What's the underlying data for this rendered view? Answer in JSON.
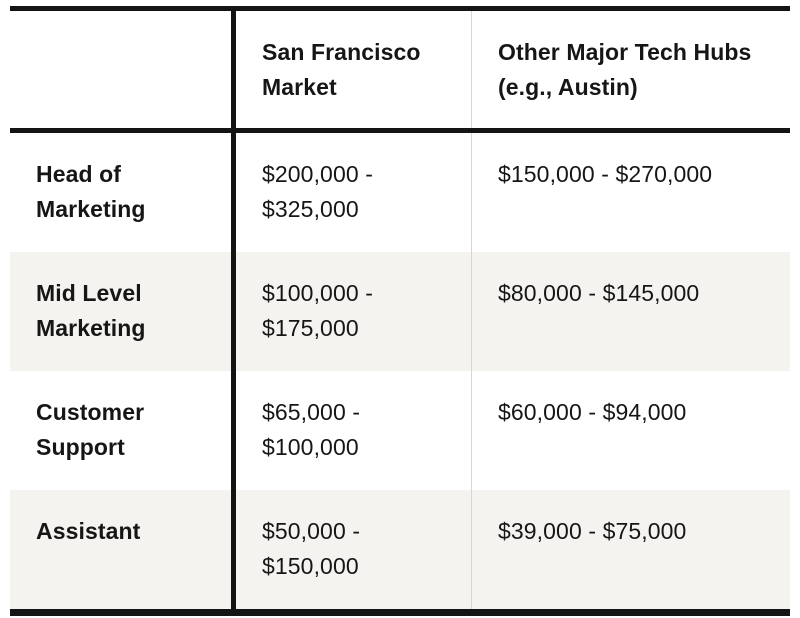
{
  "chart_data": {
    "type": "table",
    "columns": [
      "",
      "San Francisco Market",
      "Other Major Tech Hubs (e.g., Austin)"
    ],
    "rows": [
      {
        "role": "Head of Marketing",
        "sf_market": "$200,000 - $325,000",
        "other_hubs": "$150,000 - $270,000"
      },
      {
        "role": "Mid Level Marketing",
        "sf_market": "$100,000 - $175,000",
        "other_hubs": "$80,000 - $145,000"
      },
      {
        "role": "Customer Support",
        "sf_market": "$65,000 - $100,000",
        "other_hubs": "$60,000 - $94,000"
      },
      {
        "role": "Assistant",
        "sf_market": "$50,000 - $150,000",
        "other_hubs": "$39,000 - $75,000"
      }
    ],
    "layout": {
      "grid": "off",
      "legend": "none"
    }
  },
  "colors": {
    "text": "#161616",
    "border_heavy": "#141414",
    "divider_light": "#d9d6d1",
    "row_alt_bg": "#f5f3ef",
    "page_bg": "#ffffff"
  }
}
